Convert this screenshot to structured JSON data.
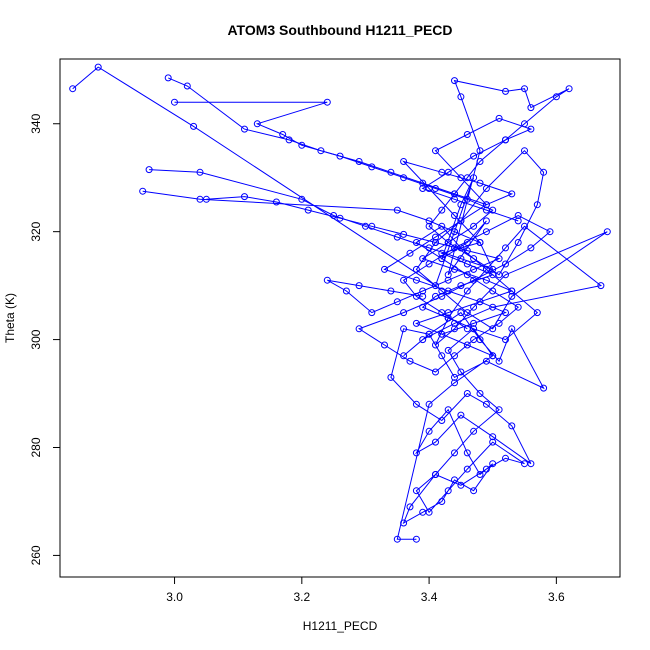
{
  "chart_data": {
    "type": "scatter",
    "title": "ATOM3 Southbound H1211_PECD",
    "xlabel": "H1211_PECD",
    "ylabel": "Theta (K)",
    "xlim": [
      2.82,
      3.7
    ],
    "ylim": [
      256,
      352
    ],
    "x_ticks": [
      3.0,
      3.2,
      3.4,
      3.6
    ],
    "x_tick_labels": [
      "3.0",
      "3.2",
      "3.4",
      "3.6"
    ],
    "y_ticks": [
      260,
      280,
      300,
      320,
      340
    ],
    "y_tick_labels": [
      "260",
      "280",
      "300",
      "320",
      "340"
    ],
    "grid": false,
    "legend": "none",
    "color": "#0000ff",
    "connected": true,
    "marker": "open-circle",
    "series": [
      {
        "x": [
          2.84,
          2.88,
          3.03,
          3.41,
          3.44,
          3.47,
          3.45,
          3.42,
          3.46,
          3.49,
          3.43,
          3.48,
          3.45,
          3.44,
          3.52,
          3.55,
          3.56,
          3.62,
          3.6,
          3.55,
          3.52,
          3.48,
          3.46,
          3.44,
          3.42,
          3.4,
          3.43,
          3.47,
          3.51,
          3.54,
          3.57,
          3.58,
          3.55,
          3.49,
          3.45,
          3.41,
          3.38,
          3.42,
          3.46,
          3.5,
          3.53,
          3.68,
          3.52,
          3.47,
          3.44,
          3.41,
          3.43,
          3.46,
          3.49,
          3.52,
          3.55,
          3.67,
          3.5,
          3.44,
          3.39,
          3.36,
          3.4,
          3.45,
          3.48,
          3.51,
          3.53,
          3.58,
          3.49,
          3.44,
          3.42,
          3.4,
          3.36,
          3.34,
          3.38,
          3.42,
          3.46,
          3.49,
          3.53,
          3.56,
          3.5,
          3.45,
          3.41,
          3.38,
          3.4,
          3.43,
          3.46,
          3.48,
          3.5,
          3.47,
          3.44,
          3.42,
          3.39,
          3.36,
          3.37,
          3.41,
          3.45,
          3.49,
          3.52,
          3.55,
          3.5,
          3.46,
          3.43,
          3.4,
          3.38,
          3.41,
          3.44,
          3.47,
          3.51,
          3.48,
          3.45,
          3.43,
          3.47,
          3.5,
          3.44,
          3.4,
          3.35,
          3.38
        ],
        "y": [
          346.5,
          350.5,
          339.5,
          310,
          320,
          330,
          325,
          315,
          318,
          322,
          312,
          335,
          345,
          348,
          346,
          346.5,
          343,
          346.5,
          345,
          340,
          337,
          333,
          330,
          327,
          324,
          321,
          318,
          315,
          312,
          318,
          325,
          331,
          335,
          328,
          322,
          318,
          313,
          309,
          305,
          302,
          308,
          320,
          312,
          306,
          302,
          299,
          304,
          309,
          313,
          317,
          321,
          310,
          306,
          303,
          300,
          297,
          301,
          305,
          300,
          296,
          302,
          291,
          296,
          293,
          297,
          301,
          302,
          293,
          288,
          285,
          290,
          288,
          284,
          277,
          282,
          286,
          281,
          279,
          283,
          287,
          279,
          275,
          277,
          272,
          274,
          270,
          268,
          266,
          269,
          275,
          273,
          276,
          278,
          277,
          281,
          276,
          272,
          268,
          272,
          275,
          279,
          283,
          287,
          290,
          294,
          298,
          302,
          297,
          292,
          288,
          263,
          263
        ]
      },
      {
        "x": [
          2.95,
          3.04,
          3.35,
          3.4,
          3.44,
          3.48,
          3.42,
          3.46,
          3.5,
          3.45,
          3.41,
          3.39,
          3.43,
          3.47,
          3.52,
          3.57,
          3.53,
          3.49,
          3.45,
          3.42,
          3.38,
          3.42,
          3.46,
          3.5,
          3.54,
          3.51,
          3.47,
          3.44,
          3.41,
          3.37,
          3.33,
          3.29,
          3.36,
          3.42,
          3.47,
          3.52,
          3.56,
          3.59,
          3.54,
          3.49,
          3.44,
          3.4,
          3.36,
          3.38,
          3.42,
          3.46
        ],
        "y": [
          327.5,
          326,
          324,
          322,
          320,
          318,
          316,
          314,
          312,
          310,
          308,
          306,
          304,
          302,
          300,
          305,
          309,
          313,
          317,
          321,
          318,
          315,
          312,
          309,
          306,
          303,
          300,
          297,
          294,
          296,
          299,
          302,
          305,
          308,
          311,
          314,
          317,
          320,
          323,
          320,
          317,
          314,
          311,
          308,
          305,
          302
        ]
      },
      {
        "x": [
          2.96,
          3.04,
          3.2,
          3.25,
          3.3,
          3.35,
          3.4,
          3.45,
          3.5,
          3.48,
          3.44,
          3.4,
          3.36,
          3.42,
          3.48,
          3.53,
          3.49,
          3.45,
          3.41,
          3.46,
          3.51,
          3.56,
          3.52,
          3.47,
          3.43,
          3.39,
          3.44,
          3.49,
          3.54
        ],
        "y": [
          331.5,
          331,
          326,
          323,
          321,
          319,
          317,
          315,
          313,
          318,
          323,
          328,
          333,
          331,
          329,
          327,
          325,
          330,
          335,
          338,
          341,
          339,
          337,
          334,
          331,
          328,
          326,
          324,
          322
        ]
      },
      {
        "x": [
          3.0,
          3.24,
          3.13,
          3.17,
          3.2,
          3.26,
          3.31,
          3.36,
          3.41,
          3.46,
          3.5,
          3.47,
          3.43,
          3.39,
          3.44,
          3.49,
          3.53,
          3.48,
          3.43,
          3.38,
          3.42,
          3.46,
          3.5
        ],
        "y": [
          344,
          344,
          340,
          338,
          336,
          334,
          332,
          330,
          328,
          326,
          324,
          321,
          318,
          315,
          313,
          311,
          309,
          307,
          305,
          303,
          301,
          299,
          297
        ]
      },
      {
        "x": [
          2.99,
          3.02,
          3.11,
          3.18,
          3.23,
          3.29,
          3.34,
          3.39,
          3.44,
          3.49,
          3.45,
          3.41,
          3.37,
          3.33,
          3.38,
          3.43,
          3.48,
          3.52,
          3.47,
          3.42
        ],
        "y": [
          348.5,
          347,
          339,
          337,
          335,
          333,
          331,
          329,
          327,
          325,
          322,
          319,
          316,
          313,
          311,
          309,
          307,
          305,
          303,
          301
        ]
      },
      {
        "x": [
          3.05,
          3.11,
          3.16,
          3.21,
          3.26,
          3.31,
          3.36,
          3.41,
          3.46,
          3.51,
          3.47,
          3.43,
          3.39,
          3.35,
          3.31,
          3.27,
          3.24,
          3.29,
          3.34,
          3.39
        ],
        "y": [
          326,
          326.5,
          325.5,
          324,
          322.5,
          321,
          319.5,
          318,
          316.5,
          315,
          313,
          311,
          309,
          307,
          305,
          309,
          311,
          310,
          309,
          308
        ]
      }
    ]
  }
}
